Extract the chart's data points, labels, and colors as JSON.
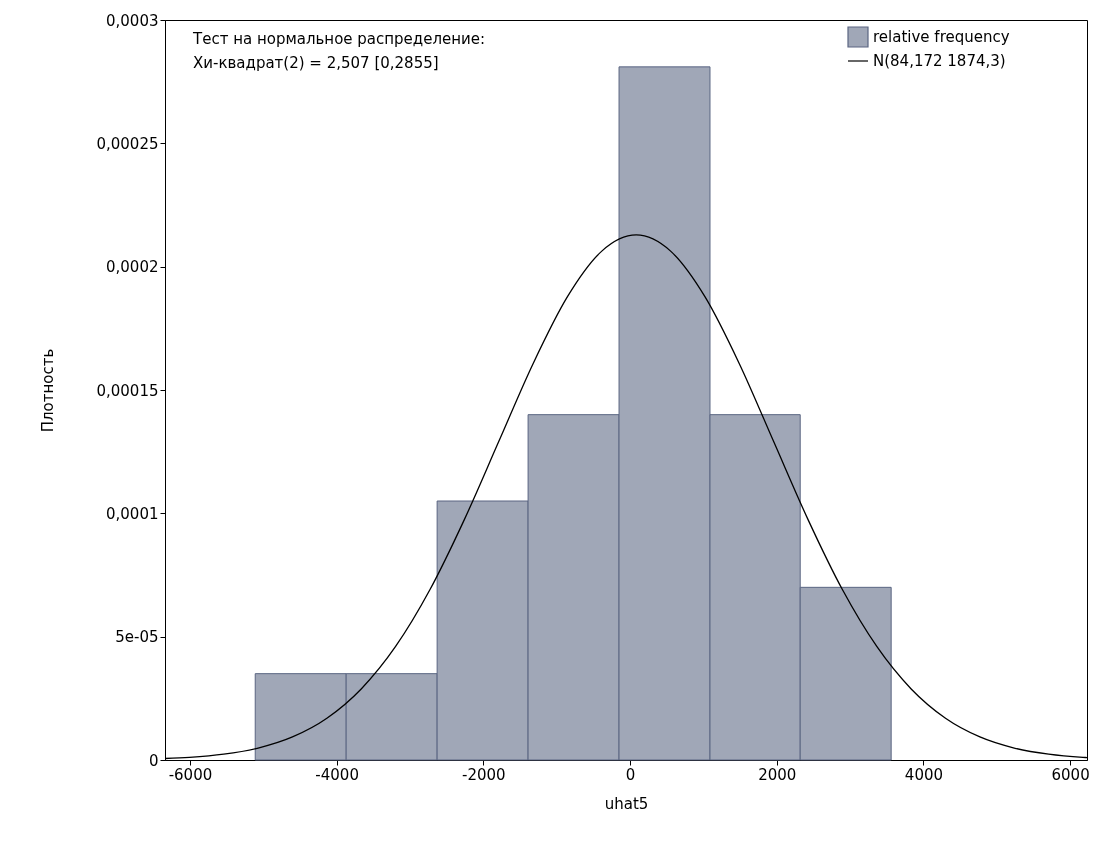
{
  "chart_data": {
    "type": "histogram",
    "xlabel": "uhat5",
    "ylabel": "Плотность",
    "annotations": [
      "Тест на нормальное распределение:",
      "Хи-квадрат(2) = 2,507 [0,2855]"
    ],
    "bins": [
      -5110,
      -3870,
      -2630,
      -1390,
      -150,
      1090,
      2320,
      3560
    ],
    "series": [
      {
        "name": "relative frequency",
        "color": "#a0a7b7",
        "values": [
          3.5e-05,
          3.5e-05,
          0.000105,
          0.00014,
          0.000281,
          0.00014,
          7e-05
        ]
      },
      {
        "name": "N(84,172 1874,3)",
        "type": "line",
        "color": "#000000",
        "x": [
          -6340,
          -6007,
          -5539,
          -5070,
          -4602,
          -4133,
          -3665,
          -3196,
          -2727,
          -2259,
          -1790,
          -1322,
          -853,
          -385,
          84,
          553,
          1021,
          1490,
          1958,
          2427,
          2895,
          3364,
          3833,
          4301,
          4770,
          5238,
          5707,
          6175,
          6230
        ],
        "values": [
          6e-07,
          1.08e-06,
          2.36e-06,
          4.85e-06,
          9.35e-06,
          1.693e-05,
          2.881e-05,
          4.603e-05,
          6.91e-05,
          9.745e-05,
          0.0001291,
          0.00016067,
          0.00018784,
          0.0002063,
          0.00021285,
          0.0002063,
          0.00018784,
          0.00016067,
          0.0001291,
          9.745e-05,
          6.91e-05,
          4.603e-05,
          2.881e-05,
          1.693e-05,
          9.35e-06,
          4.85e-06,
          2.36e-06,
          1.08e-06,
          9.8e-07
        ]
      }
    ],
    "xlim": [
      -6340,
      6230
    ],
    "xticks": [
      -6000,
      -4000,
      -2000,
      0,
      2000,
      4000,
      6000
    ],
    "ylim": [
      0,
      0.0003
    ],
    "yticks": [
      0,
      {
        "value": 5e-05,
        "label": "5e-05"
      },
      {
        "value": 0.0001,
        "label": "0,0001"
      },
      {
        "value": 0.00015,
        "label": "0,00015"
      },
      {
        "value": 0.0002,
        "label": "0,0002"
      },
      {
        "value": 0.00025,
        "label": "0,00025"
      },
      {
        "value": 0.0003,
        "label": "0,0003"
      }
    ],
    "grid": false,
    "legend": "top right"
  }
}
